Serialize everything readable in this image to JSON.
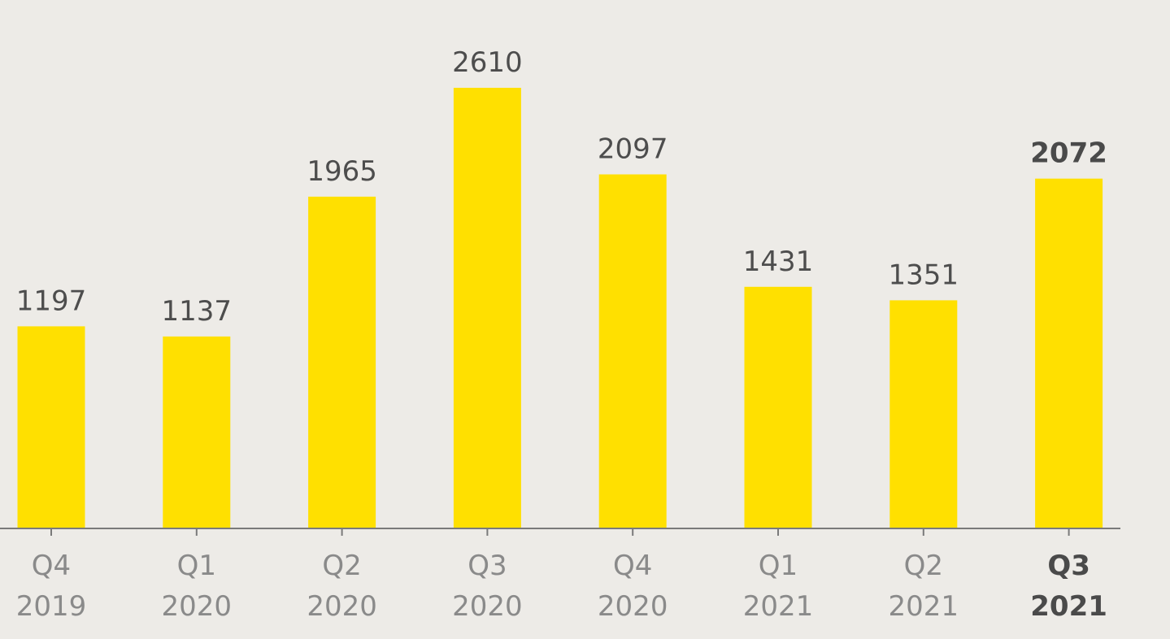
{
  "chart_data": {
    "type": "bar",
    "categories": [
      {
        "quarter": "Q4",
        "year": "2019"
      },
      {
        "quarter": "Q1",
        "year": "2020"
      },
      {
        "quarter": "Q2",
        "year": "2020"
      },
      {
        "quarter": "Q3",
        "year": "2020"
      },
      {
        "quarter": "Q4",
        "year": "2020"
      },
      {
        "quarter": "Q1",
        "year": "2021"
      },
      {
        "quarter": "Q2",
        "year": "2021"
      },
      {
        "quarter": "Q3",
        "year": "2021"
      }
    ],
    "values": [
      1197,
      1137,
      1965,
      2610,
      2097,
      1431,
      1351,
      2072
    ],
    "highlight_index": 7,
    "ylim": [
      0,
      2610
    ],
    "grid": false,
    "title": "",
    "xlabel": "",
    "ylabel": "",
    "colors": {
      "bar": "#ffe000",
      "axis": "#7a7a7a",
      "background": "#edebe7"
    }
  }
}
